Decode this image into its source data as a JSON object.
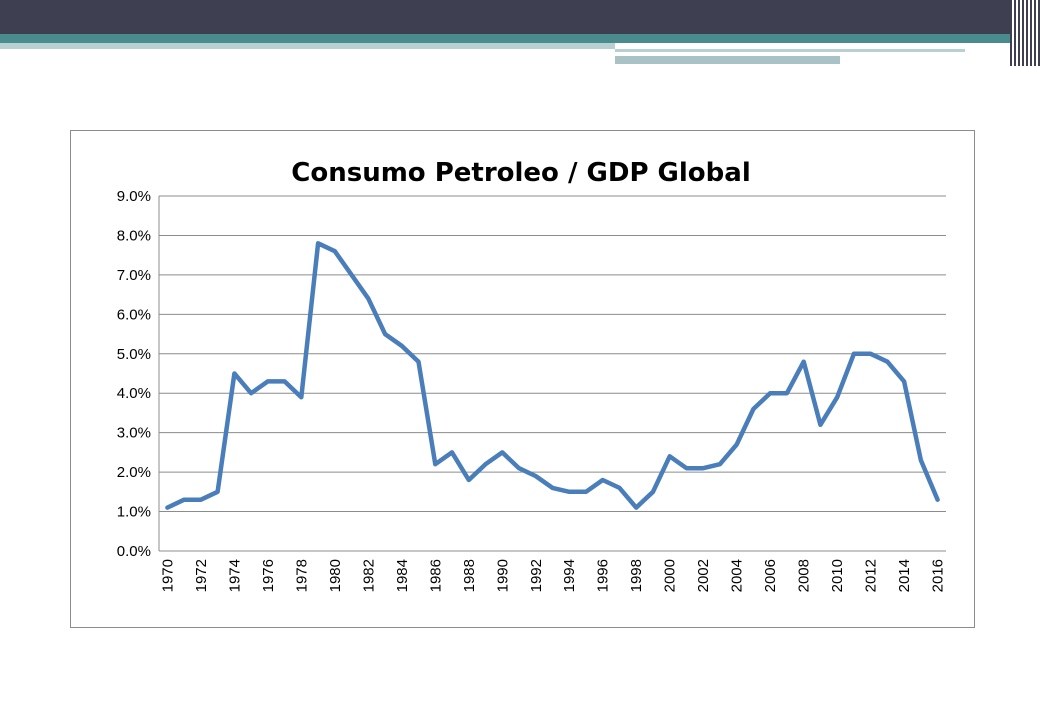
{
  "slide": {
    "header_colors": {
      "dark": "#3f3f52",
      "teal": "#4a8b8d",
      "light": "#b9d0d2"
    }
  },
  "chart_data": {
    "type": "line",
    "title": "Consumo  Petroleo / GDP Global",
    "xlabel": "",
    "ylabel": "",
    "ylim": [
      0,
      0.09
    ],
    "y_ticks": [
      "0.0%",
      "1.0%",
      "2.0%",
      "3.0%",
      "4.0%",
      "5.0%",
      "6.0%",
      "7.0%",
      "8.0%",
      "9.0%"
    ],
    "x_ticks": [
      "1970",
      "1972",
      "1974",
      "1976",
      "1978",
      "1980",
      "1982",
      "1984",
      "1986",
      "1988",
      "1990",
      "1992",
      "1994",
      "1996",
      "1998",
      "2000",
      "2002",
      "2004",
      "2006",
      "2008",
      "2010",
      "2012",
      "2014",
      "2016"
    ],
    "grid": "horizontal",
    "line_color": "#4a7ebb",
    "x": [
      1970,
      1971,
      1972,
      1973,
      1974,
      1975,
      1976,
      1977,
      1978,
      1979,
      1980,
      1981,
      1982,
      1983,
      1984,
      1985,
      1986,
      1987,
      1988,
      1989,
      1990,
      1991,
      1992,
      1993,
      1994,
      1995,
      1996,
      1997,
      1998,
      1999,
      2000,
      2001,
      2002,
      2003,
      2004,
      2005,
      2006,
      2007,
      2008,
      2009,
      2010,
      2011,
      2012,
      2013,
      2014,
      2015,
      2016
    ],
    "values": [
      0.011,
      0.013,
      0.013,
      0.015,
      0.045,
      0.04,
      0.043,
      0.043,
      0.039,
      0.078,
      0.076,
      0.07,
      0.064,
      0.055,
      0.052,
      0.048,
      0.022,
      0.025,
      0.018,
      0.022,
      0.025,
      0.021,
      0.019,
      0.016,
      0.015,
      0.015,
      0.018,
      0.016,
      0.011,
      0.015,
      0.024,
      0.021,
      0.021,
      0.022,
      0.027,
      0.036,
      0.04,
      0.04,
      0.048,
      0.032,
      0.039,
      0.05,
      0.05,
      0.048,
      0.043,
      0.023,
      0.013
    ]
  }
}
